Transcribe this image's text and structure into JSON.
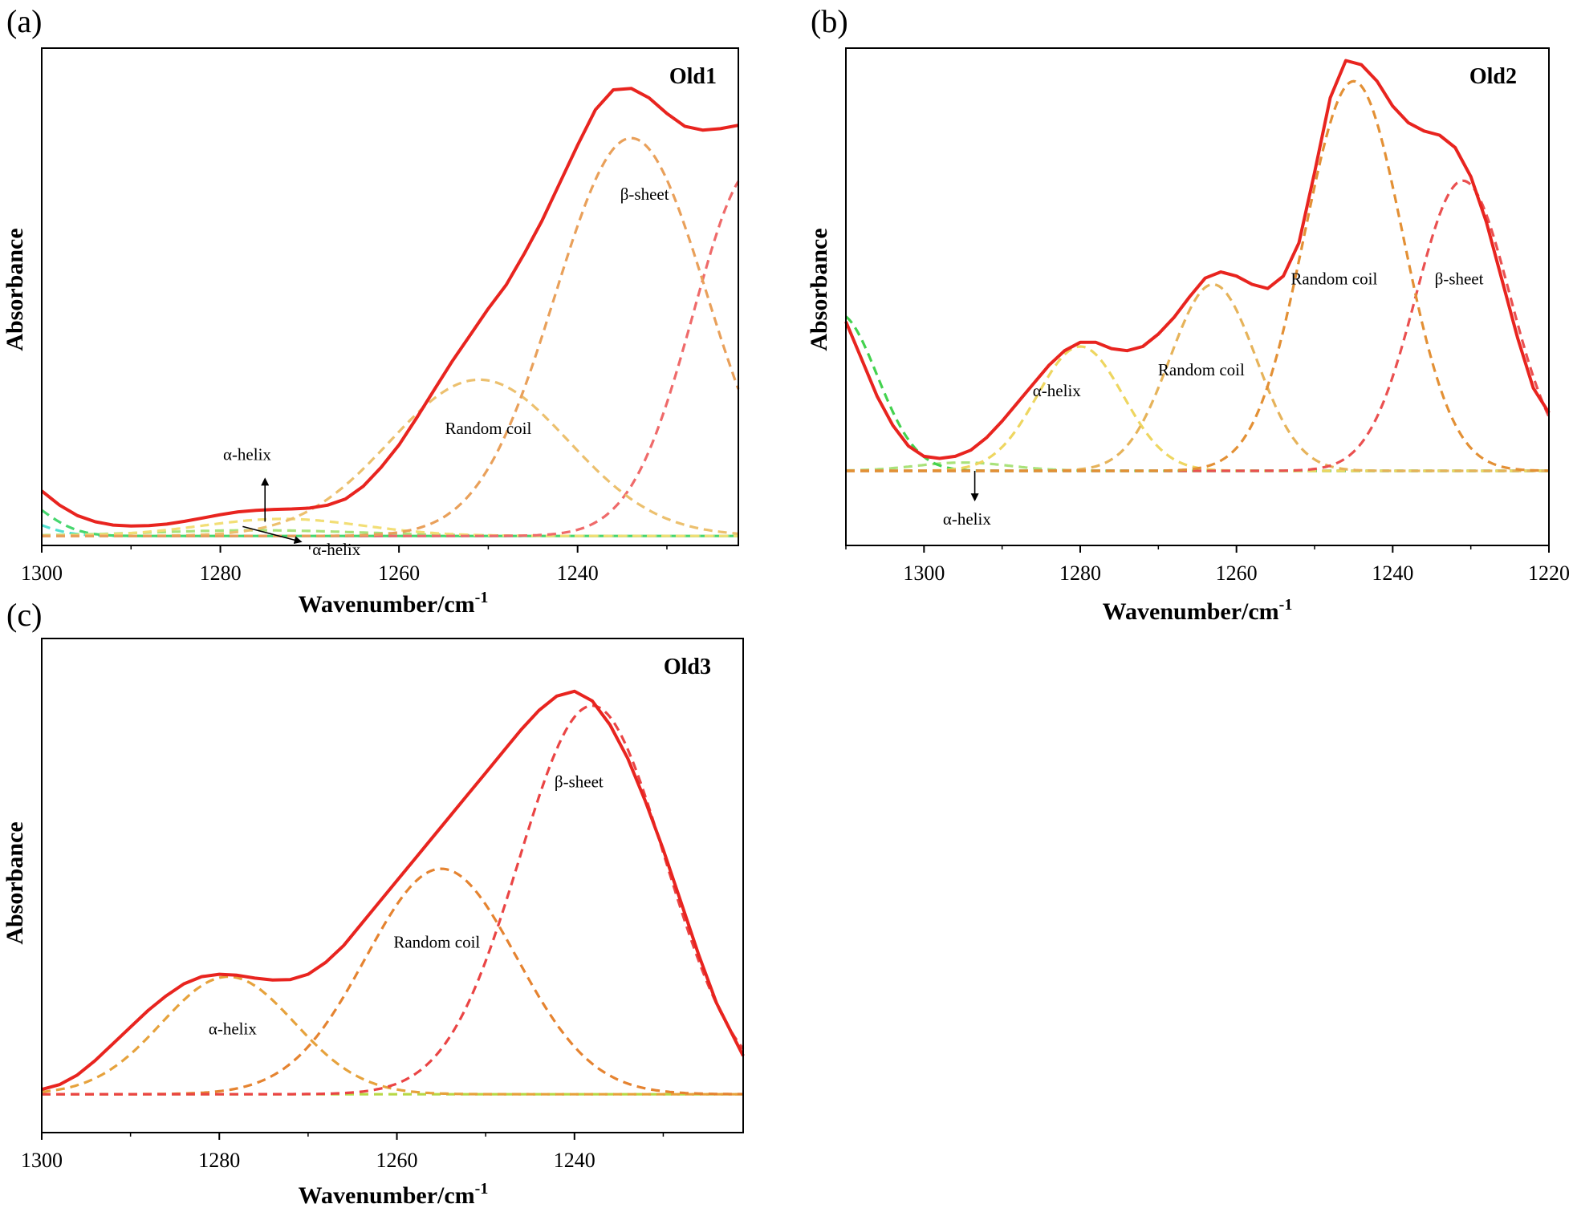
{
  "chart_data": [
    {
      "panel": "(a)",
      "type": "line",
      "title": "Old1",
      "xlabel": "Wavenumber/cm",
      "xlabel_sup": "-1",
      "ylabel": "Absorbance",
      "xlim": [
        1300,
        1222
      ],
      "ylim": [
        0,
        1.05
      ],
      "xticks": [
        1300,
        1280,
        1260,
        1240,
        1220
      ],
      "baseline": 0.02,
      "series": [
        {
          "name": "fitted",
          "color": "#e8241f",
          "dash": false,
          "x": [
            1300,
            1298,
            1296,
            1294,
            1292,
            1290,
            1288,
            1286,
            1284,
            1282,
            1280,
            1278,
            1276,
            1274,
            1272,
            1270,
            1268,
            1266,
            1264,
            1262,
            1260,
            1258,
            1256,
            1254,
            1252,
            1250,
            1248,
            1246,
            1244,
            1242,
            1240,
            1238,
            1236,
            1234,
            1232,
            1230,
            1228,
            1226,
            1224,
            1222
          ],
          "y": [
            0.115,
            0.085,
            0.063,
            0.05,
            0.043,
            0.041,
            0.042,
            0.045,
            0.051,
            0.058,
            0.065,
            0.071,
            0.074,
            0.076,
            0.077,
            0.079,
            0.085,
            0.098,
            0.125,
            0.165,
            0.212,
            0.27,
            0.33,
            0.39,
            0.445,
            0.5,
            0.55,
            0.615,
            0.685,
            0.765,
            0.845,
            0.92,
            0.962,
            0.965,
            0.945,
            0.912,
            0.885,
            0.877,
            0.88,
            0.887
          ]
        },
        {
          "name": "β-sheet",
          "color": "#e9a05a",
          "dash": true,
          "center": 1234,
          "height": 0.84,
          "width": 8.5
        },
        {
          "name": "Random coil",
          "color": "#ecc06e",
          "dash": true,
          "center": 1251,
          "height": 0.33,
          "width": 10
        },
        {
          "name": "β-sheet 2",
          "color": "#ef6a6a",
          "dash": true,
          "center": 1220,
          "height": 0.78,
          "width": 7
        },
        {
          "name": "α-helix",
          "color": "#f2de75",
          "dash": true,
          "center": 1273,
          "height": 0.036,
          "width": 9
        },
        {
          "name": "α-helix 2",
          "color": "#a9e27a",
          "dash": true,
          "center": 1276,
          "height": 0.012,
          "width": 12
        },
        {
          "name": "side band",
          "color": "#46d66e",
          "dash": true,
          "center": 1304,
          "height": 0.09,
          "width": 4
        },
        {
          "name": "side band 2",
          "color": "#50e0d0",
          "dash": true,
          "center": 1305,
          "height": 0.05,
          "width": 4
        },
        {
          "name": "baseline",
          "color": "#5ab4ea",
          "dash": true,
          "center": 0,
          "height": 0,
          "width": 1
        }
      ],
      "annotations": [
        {
          "text": "β-sheet",
          "x": 1232.5,
          "y": 0.73
        },
        {
          "text": "Random coil",
          "x": 1250,
          "y": 0.235
        },
        {
          "text": "α-helix",
          "x": 1277,
          "y": 0.18
        },
        {
          "text": "α-helix",
          "x": 1267,
          "y": -0.02
        }
      ],
      "arrows": [
        {
          "from": [
            1275,
            0.05
          ],
          "to": [
            1275,
            0.14
          ]
        },
        {
          "from": [
            1277.5,
            0.04
          ],
          "to": [
            1271,
            0.008
          ]
        }
      ]
    },
    {
      "panel": "(b)",
      "type": "line",
      "title": "Old2",
      "xlabel": "Wavenumber/cm",
      "xlabel_sup": "-1",
      "ylabel": "Absorbance",
      "xlim": [
        1310,
        1220
      ],
      "ylim": [
        -0.18,
        1.02
      ],
      "xticks": [
        1300,
        1280,
        1260,
        1240,
        1220
      ],
      "baseline": 0.0,
      "series": [
        {
          "name": "fitted",
          "color": "#e8241f",
          "dash": false,
          "x": [
            1310,
            1308,
            1306,
            1304,
            1302,
            1300,
            1298,
            1296,
            1294,
            1292,
            1290,
            1288,
            1286,
            1284,
            1282,
            1280,
            1278,
            1276,
            1274,
            1272,
            1270,
            1268,
            1266,
            1264,
            1262,
            1260,
            1258,
            1256,
            1254,
            1252,
            1250,
            1248,
            1246,
            1244,
            1242,
            1240,
            1238,
            1236,
            1234,
            1232,
            1230,
            1228,
            1226,
            1224,
            1222,
            1220
          ],
          "y": [
            0.36,
            0.27,
            0.18,
            0.11,
            0.06,
            0.035,
            0.03,
            0.035,
            0.05,
            0.08,
            0.12,
            0.165,
            0.21,
            0.255,
            0.29,
            0.31,
            0.31,
            0.295,
            0.29,
            0.3,
            0.33,
            0.37,
            0.42,
            0.465,
            0.48,
            0.47,
            0.45,
            0.44,
            0.47,
            0.55,
            0.72,
            0.9,
            0.99,
            0.98,
            0.94,
            0.88,
            0.84,
            0.82,
            0.81,
            0.78,
            0.71,
            0.6,
            0.46,
            0.32,
            0.2,
            0.14
          ]
        },
        {
          "name": "Random coil (1245)",
          "color": "#e39035",
          "dash": true,
          "center": 1245,
          "height": 0.94,
          "width": 6.3
        },
        {
          "name": "β-sheet",
          "color": "#ea5050",
          "dash": true,
          "center": 1231,
          "height": 0.7,
          "width": 6
        },
        {
          "name": "Random coil (1263)",
          "color": "#e6b35a",
          "dash": true,
          "center": 1263,
          "height": 0.45,
          "width": 5.5
        },
        {
          "name": "α-helix",
          "color": "#eed660",
          "dash": true,
          "center": 1280,
          "height": 0.3,
          "width": 5.5
        },
        {
          "name": "side band",
          "color": "#43d24e",
          "dash": true,
          "center": 1311,
          "height": 0.38,
          "width": 5
        },
        {
          "name": "α-helix 2",
          "color": "#a9e27a",
          "dash": true,
          "center": 1295,
          "height": 0.02,
          "width": 6
        },
        {
          "name": "baseline",
          "color": "#2bbfb8",
          "dash": true,
          "center": 0,
          "height": 0,
          "width": 1
        }
      ],
      "annotations": [
        {
          "text": "α-helix",
          "x": 1283,
          "y": 0.18
        },
        {
          "text": "Random coil",
          "x": 1264.5,
          "y": 0.23
        },
        {
          "text": "Random coil",
          "x": 1247.5,
          "y": 0.45
        },
        {
          "text": "β-sheet",
          "x": 1231.5,
          "y": 0.45
        },
        {
          "text": "α-helix",
          "x": 1294.5,
          "y": -0.13
        }
      ],
      "arrows": [
        {
          "from": [
            1293.5,
            0.0
          ],
          "to": [
            1293.5,
            -0.07
          ]
        }
      ]
    },
    {
      "panel": "(c)",
      "type": "line",
      "title": "Old3",
      "xlabel": "Wavenumber/cm",
      "xlabel_sup": "-1",
      "ylabel": "Absorbance",
      "xlim": [
        1300,
        1221
      ],
      "ylim": [
        0,
        1.03
      ],
      "xticks": [
        1300,
        1280,
        1260,
        1240,
        1220
      ],
      "baseline": 0.08,
      "series": [
        {
          "name": "fitted",
          "color": "#e8241f",
          "dash": false,
          "x": [
            1300,
            1298,
            1296,
            1294,
            1292,
            1290,
            1288,
            1286,
            1284,
            1282,
            1280,
            1278,
            1276,
            1274,
            1272,
            1270,
            1268,
            1266,
            1264,
            1262,
            1260,
            1258,
            1256,
            1254,
            1252,
            1250,
            1248,
            1246,
            1244,
            1242,
            1240,
            1238,
            1236,
            1234,
            1232,
            1230,
            1228,
            1226,
            1224,
            1221
          ],
          "y": [
            0.09,
            0.1,
            0.12,
            0.15,
            0.185,
            0.22,
            0.255,
            0.285,
            0.31,
            0.325,
            0.33,
            0.328,
            0.322,
            0.318,
            0.319,
            0.33,
            0.355,
            0.39,
            0.435,
            0.48,
            0.525,
            0.57,
            0.615,
            0.66,
            0.705,
            0.75,
            0.795,
            0.84,
            0.88,
            0.91,
            0.92,
            0.9,
            0.85,
            0.78,
            0.69,
            0.59,
            0.48,
            0.37,
            0.27,
            0.16
          ]
        },
        {
          "name": "β-sheet",
          "color": "#ea4444",
          "dash": true,
          "center": 1238,
          "height": 0.81,
          "width": 8.2
        },
        {
          "name": "Random coil",
          "color": "#e58330",
          "dash": true,
          "center": 1255,
          "height": 0.47,
          "width": 8.5
        },
        {
          "name": "α-helix",
          "color": "#e6a23c",
          "dash": true,
          "center": 1279,
          "height": 0.245,
          "width": 7.5
        },
        {
          "name": "baseline",
          "color": "#b7d846",
          "dash": true,
          "center": 0,
          "height": 0,
          "width": 1
        }
      ],
      "annotations": [
        {
          "text": "β-sheet",
          "x": 1239.5,
          "y": 0.72
        },
        {
          "text": "Random coil",
          "x": 1255.5,
          "y": 0.385
        },
        {
          "text": "α-helix",
          "x": 1278.5,
          "y": 0.205
        }
      ],
      "arrows": []
    }
  ]
}
